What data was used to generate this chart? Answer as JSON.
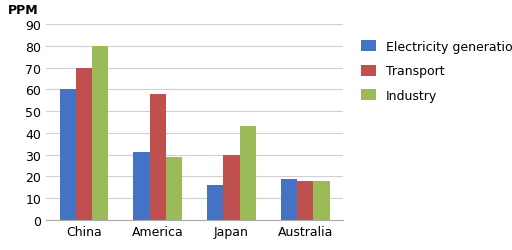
{
  "categories": [
    "China",
    "America",
    "Japan",
    "Australia"
  ],
  "series": {
    "Electricity generation": [
      60,
      31,
      16,
      19
    ],
    "Transport": [
      70,
      58,
      30,
      18
    ],
    "Industry": [
      80,
      29,
      43,
      18
    ]
  },
  "bar_colors": {
    "Electricity generation": "#4472C4",
    "Transport": "#C0504D",
    "Industry": "#9BBB59"
  },
  "ylabel": "PPM",
  "ylim": [
    0,
    90
  ],
  "yticks": [
    0,
    10,
    20,
    30,
    40,
    50,
    60,
    70,
    80,
    90
  ],
  "legend_labels": [
    "Electricity generation",
    "Transport",
    "Industry"
  ],
  "background_color": "#FFFFFF",
  "grid_color": "#D0D0D0",
  "bar_width": 0.22,
  "figsize": [
    5.12,
    2.51
  ],
  "dpi": 100
}
